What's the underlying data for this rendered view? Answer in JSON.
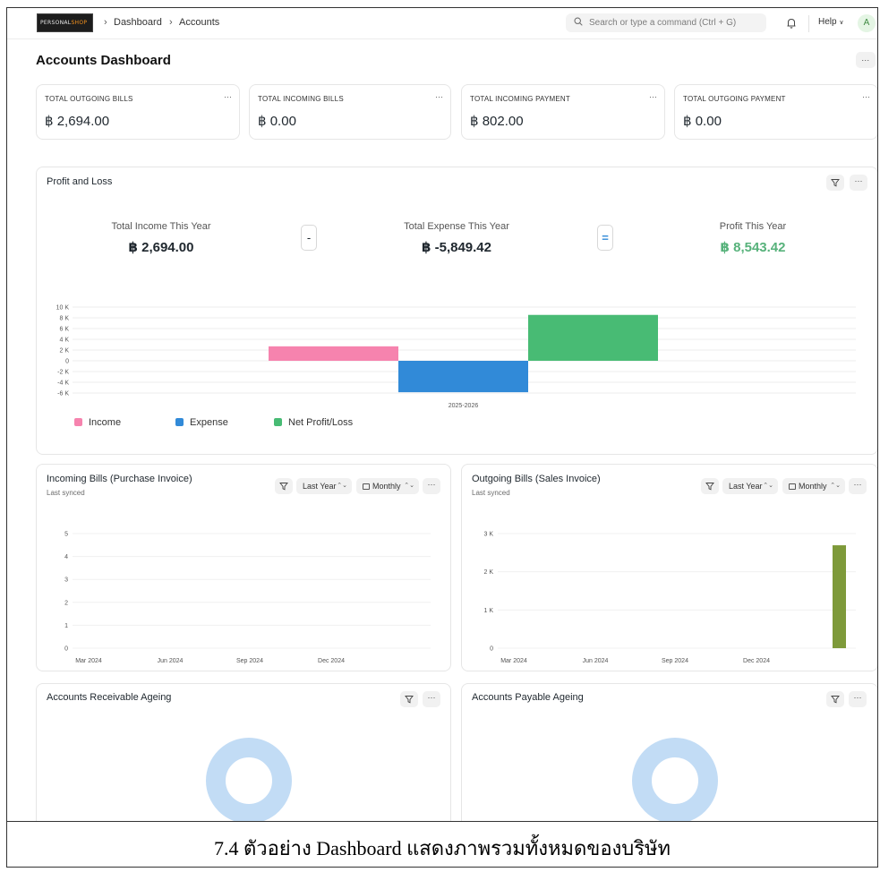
{
  "navbar": {
    "logo_text_a": "PERSONAL",
    "logo_text_b": "SHOP",
    "breadcrumbs": [
      "Dashboard",
      "Accounts"
    ],
    "search_placeholder": "Search or type a command (Ctrl + G)",
    "help_label": "Help",
    "avatar_initial": "A"
  },
  "page": {
    "title": "Accounts Dashboard",
    "more_label": "..."
  },
  "number_cards": [
    {
      "label": "TOTAL OUTGOING BILLS",
      "value": "฿ 2,694.00"
    },
    {
      "label": "TOTAL INCOMING BILLS",
      "value": "฿ 0.00"
    },
    {
      "label": "TOTAL INCOMING PAYMENT",
      "value": "฿ 802.00"
    },
    {
      "label": "TOTAL OUTGOING PAYMENT",
      "value": "฿ 0.00"
    }
  ],
  "profit_loss": {
    "title": "Profit and Loss",
    "income_label": "Total Income This Year",
    "income_value": "฿ 2,694.00",
    "minus_symbol": "-",
    "expense_label": "Total Expense This Year",
    "expense_value": "฿ -5,849.42",
    "equals_symbol": "=",
    "profit_label": "Profit This Year",
    "profit_value": "฿ 8,543.42",
    "colors": {
      "income": "#f683ae",
      "expense": "#318ad8",
      "profit": "#48bb74",
      "profit_text": "#57b27b"
    },
    "legend": [
      "Income",
      "Expense",
      "Net Profit/Loss"
    ]
  },
  "incoming_bills": {
    "title": "Incoming Bills (Purchase Invoice)",
    "subtitle": "Last synced",
    "timespan": "Last Year",
    "interval": "Monthly"
  },
  "outgoing_bills": {
    "title": "Outgoing Bills (Sales Invoice)",
    "subtitle": "Last synced",
    "timespan": "Last Year",
    "interval": "Monthly"
  },
  "receivable": {
    "title": "Accounts Receivable Ageing"
  },
  "payable": {
    "title": "Accounts Payable Ageing"
  },
  "caption": "7.4 ตัวอย่าง Dashboard แสดงภาพรวมทั้งหมดของบริษัท",
  "chart_data": [
    {
      "type": "bar",
      "categories": [
        "2025-2026"
      ],
      "series": [
        {
          "name": "Income",
          "values": [
            2694.0
          ]
        },
        {
          "name": "Expense",
          "values": [
            -5849.42
          ]
        },
        {
          "name": "Net Profit/Loss",
          "values": [
            8543.42
          ]
        }
      ],
      "y_ticks": [
        "10 K",
        "8 K",
        "6 K",
        "4 K",
        "2 K",
        "0",
        "-2 K",
        "-4 K",
        "-6 K"
      ],
      "ylim": [
        -6000,
        10000
      ],
      "grid": true,
      "legend_position": "bottom-left"
    },
    {
      "type": "line",
      "x_ticks": [
        "Mar 2024",
        "Jun 2024",
        "Sep 2024",
        "Dec 2024"
      ],
      "y_ticks": [
        "5",
        "4",
        "3",
        "2",
        "1",
        "0"
      ],
      "ylim": [
        0,
        5
      ],
      "grid": true,
      "values": []
    },
    {
      "type": "bar",
      "x_ticks": [
        "Mar 2024",
        "Jun 2024",
        "Sep 2024",
        "Dec 2024"
      ],
      "y_ticks": [
        "3 K",
        "2 K",
        "1 K",
        "0"
      ],
      "ylim": [
        0,
        3000
      ],
      "grid": true,
      "bar_color": "#7e9a3a",
      "values": [
        2694
      ]
    },
    {
      "type": "pie",
      "title": "Accounts Receivable Ageing",
      "color": "#c2dcf5",
      "values": []
    },
    {
      "type": "pie",
      "title": "Accounts Payable Ageing",
      "color": "#c2dcf5",
      "values": []
    }
  ]
}
